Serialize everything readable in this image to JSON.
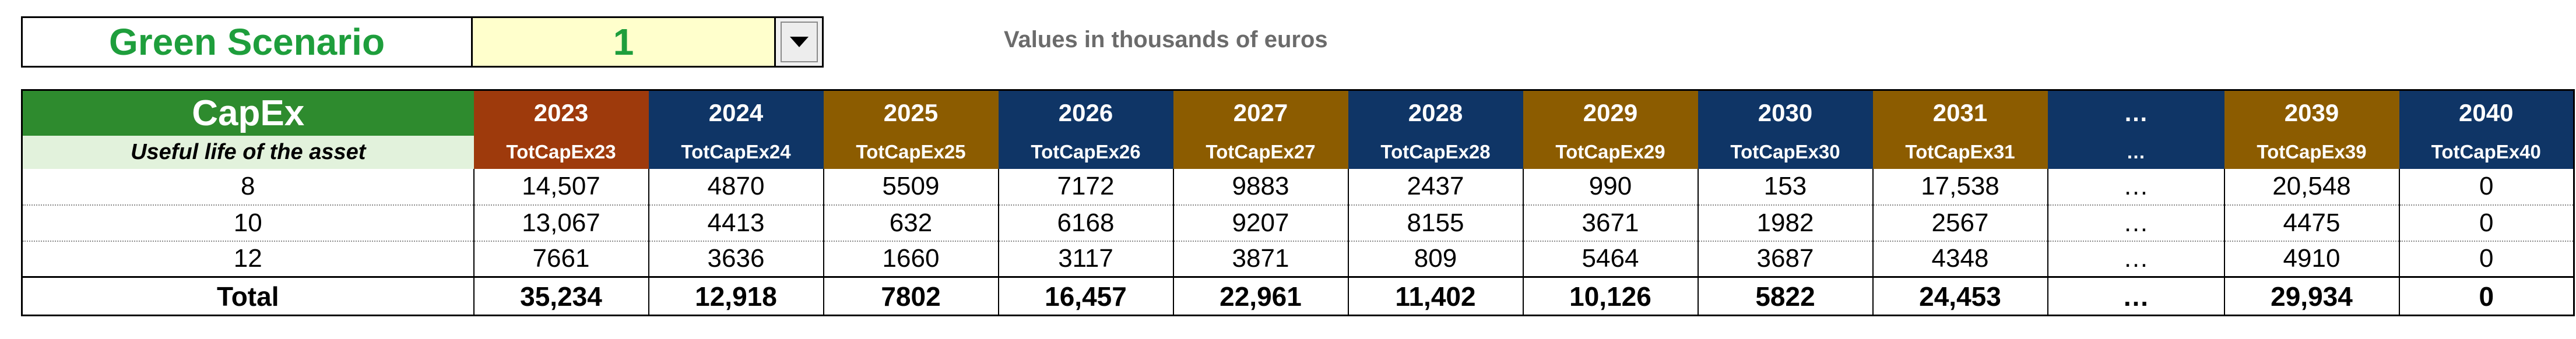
{
  "scenario": {
    "label": "Green Scenario",
    "value": "1",
    "dropdown_icon": "triangle-down-icon"
  },
  "units_note": "Values in thousands of euros",
  "table": {
    "title": "CapEx",
    "row_header_label": "Useful life of the asset",
    "columns": [
      {
        "year": "2023",
        "code": "TotCapEx23",
        "color": "#9e3a0c"
      },
      {
        "year": "2024",
        "code": "TotCapEx24",
        "color": "#0f3566"
      },
      {
        "year": "2025",
        "code": "TotCapEx25",
        "color": "#8c5c00"
      },
      {
        "year": "2026",
        "code": "TotCapEx26",
        "color": "#0f3566"
      },
      {
        "year": "2027",
        "code": "TotCapEx27",
        "color": "#8c5c00"
      },
      {
        "year": "2028",
        "code": "TotCapEx28",
        "color": "#0f3566"
      },
      {
        "year": "2029",
        "code": "TotCapEx29",
        "color": "#8c5c00"
      },
      {
        "year": "2030",
        "code": "TotCapEx30",
        "color": "#0f3566"
      },
      {
        "year": "2031",
        "code": "TotCapEx31",
        "color": "#8c5c00"
      },
      {
        "year": "…",
        "code": "…",
        "color": "#0f3566"
      },
      {
        "year": "2039",
        "code": "TotCapEx39",
        "color": "#8c5c00"
      },
      {
        "year": "2040",
        "code": "TotCapEx40",
        "color": "#0f3566"
      }
    ],
    "rows": [
      {
        "label": "8",
        "values": [
          "14,507",
          "4870",
          "5509",
          "7172",
          "9883",
          "2437",
          "990",
          "153",
          "17,538",
          "…",
          "20,548",
          "0"
        ]
      },
      {
        "label": "10",
        "values": [
          "13,067",
          "4413",
          "632",
          "6168",
          "9207",
          "8155",
          "3671",
          "1982",
          "2567",
          "…",
          "4475",
          "0"
        ]
      },
      {
        "label": "12",
        "values": [
          "7661",
          "3636",
          "1660",
          "3117",
          "3871",
          "809",
          "5464",
          "3687",
          "4348",
          "…",
          "4910",
          "0"
        ]
      }
    ],
    "total": {
      "label": "Total",
      "values": [
        "35,234",
        "12,918",
        "7802",
        "16,457",
        "22,961",
        "11,402",
        "10,126",
        "5822",
        "24,453",
        "…",
        "29,934",
        "0"
      ]
    }
  }
}
